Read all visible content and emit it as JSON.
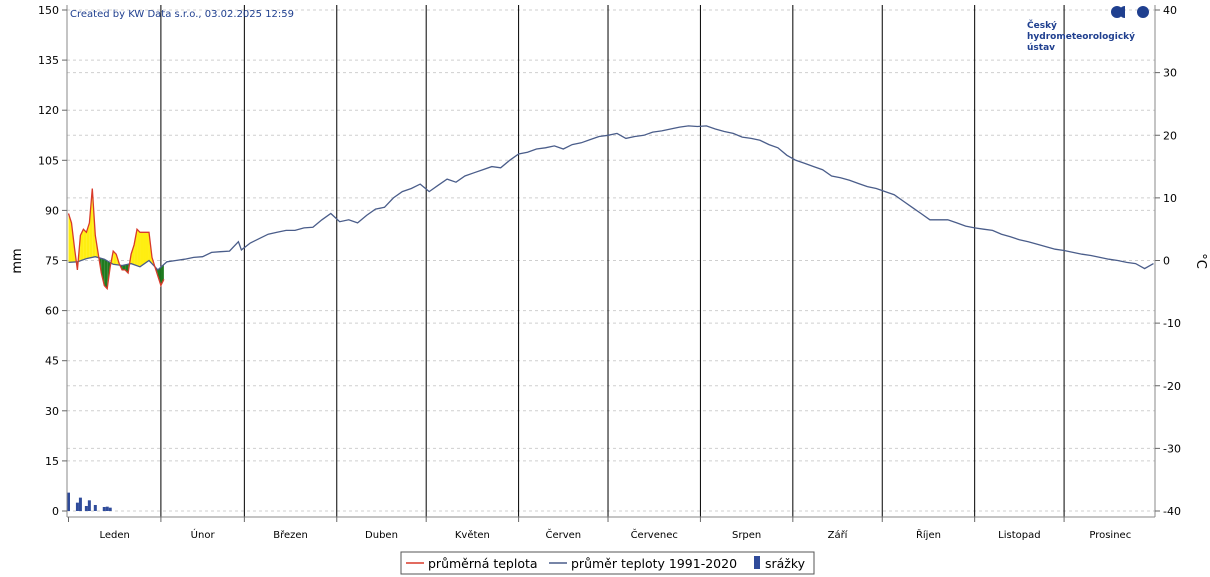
{
  "credit": "Created by KW Data s.r.o., 03.02.2025 12:59",
  "logo": {
    "lines": [
      "Český",
      "hydrometeorologický",
      "ústav"
    ],
    "colors": {
      "brand": "#1f3f8f"
    }
  },
  "chart_data": {
    "type": "line",
    "grid": true,
    "legend_position": "bottom-center",
    "y_left": {
      "label": "mm",
      "range": [
        0,
        150
      ],
      "ticks": [
        0,
        15,
        30,
        45,
        60,
        75,
        90,
        105,
        120,
        135,
        150
      ]
    },
    "y_right": {
      "label": "°C",
      "range": [
        -40,
        40
      ],
      "ticks": [
        -40,
        -30,
        -20,
        -10,
        0,
        10,
        20,
        30,
        40
      ]
    },
    "x": {
      "unit": "day of year",
      "range": [
        1,
        365
      ]
    },
    "months": [
      {
        "name": "Leden",
        "start": 1,
        "end": 31
      },
      {
        "name": "Únor",
        "start": 32,
        "end": 59
      },
      {
        "name": "Březen",
        "start": 60,
        "end": 90
      },
      {
        "name": "Duben",
        "start": 91,
        "end": 120
      },
      {
        "name": "Květen",
        "start": 121,
        "end": 151
      },
      {
        "name": "Červen",
        "start": 152,
        "end": 181
      },
      {
        "name": "Červenec",
        "start": 182,
        "end": 212
      },
      {
        "name": "Srpen",
        "start": 213,
        "end": 243
      },
      {
        "name": "Září",
        "start": 244,
        "end": 273
      },
      {
        "name": "Říjen",
        "start": 274,
        "end": 304
      },
      {
        "name": "Listopad",
        "start": 305,
        "end": 334
      },
      {
        "name": "Prosinec",
        "start": 335,
        "end": 365
      }
    ],
    "series": [
      {
        "name": "průměrná teplota",
        "axis": "right",
        "color": "#d83a2a",
        "x": [
          1,
          2,
          3,
          4,
          5,
          6,
          7,
          8,
          9,
          10,
          11,
          12,
          13,
          14,
          15,
          16,
          17,
          18,
          19,
          20,
          21,
          22,
          23,
          24,
          25,
          26,
          27,
          28,
          29,
          30,
          31,
          32,
          33
        ],
        "values": [
          7.5,
          6.0,
          2.0,
          -1.5,
          4.0,
          5.0,
          4.5,
          6.0,
          11.5,
          4.0,
          1.0,
          -2.0,
          -4.0,
          -4.5,
          -1.0,
          1.5,
          1.0,
          -0.5,
          -1.5,
          -1.5,
          -2.0,
          1.0,
          2.5,
          5.0,
          4.5,
          4.5,
          4.5,
          4.5,
          0.5,
          -1.0,
          -2.5,
          -4.0,
          -3.0
        ]
      },
      {
        "name": "průměr teploty 1991-2020",
        "axis": "right",
        "color": "#4a5d8a",
        "x": [
          1,
          4,
          7,
          10,
          13,
          16,
          19,
          22,
          25,
          28,
          31,
          34,
          37,
          40,
          43,
          46,
          49,
          52,
          55,
          58,
          59,
          62,
          65,
          68,
          71,
          74,
          77,
          80,
          83,
          86,
          89,
          92,
          95,
          98,
          101,
          104,
          107,
          110,
          113,
          116,
          119,
          122,
          125,
          128,
          131,
          134,
          137,
          140,
          143,
          146,
          149,
          152,
          155,
          158,
          161,
          164,
          167,
          170,
          173,
          176,
          179,
          182,
          185,
          188,
          191,
          194,
          197,
          200,
          203,
          206,
          209,
          212,
          215,
          218,
          221,
          224,
          227,
          230,
          233,
          236,
          239,
          242,
          245,
          248,
          251,
          254,
          257,
          260,
          263,
          266,
          269,
          272,
          275,
          278,
          281,
          284,
          287,
          290,
          293,
          296,
          299,
          302,
          305,
          308,
          311,
          314,
          317,
          320,
          323,
          326,
          329,
          332,
          335,
          338,
          341,
          344,
          347,
          350,
          353,
          356,
          359,
          362,
          365
        ],
        "values": [
          -0.3,
          -0.2,
          0.3,
          0.6,
          0.2,
          -0.6,
          -0.8,
          -0.5,
          -1.0,
          0.0,
          -1.5,
          -0.2,
          0.0,
          0.2,
          0.5,
          0.6,
          1.3,
          1.4,
          1.5,
          3.0,
          1.7,
          2.8,
          3.5,
          4.2,
          4.5,
          4.8,
          4.8,
          5.2,
          5.3,
          6.5,
          7.5,
          6.2,
          6.5,
          6.0,
          7.2,
          8.2,
          8.5,
          10.0,
          11.0,
          11.5,
          12.2,
          11.0,
          12.0,
          13.0,
          12.5,
          13.5,
          14.0,
          14.5,
          15.0,
          14.8,
          16.0,
          17.0,
          17.3,
          17.8,
          18.0,
          18.3,
          17.8,
          18.5,
          18.8,
          19.3,
          19.8,
          20.0,
          20.3,
          19.5,
          19.8,
          20.0,
          20.5,
          20.7,
          21.0,
          21.3,
          21.5,
          21.4,
          21.5,
          21.0,
          20.6,
          20.3,
          19.7,
          19.5,
          19.2,
          18.5,
          18.0,
          16.8,
          16.0,
          15.5,
          15.0,
          14.5,
          13.5,
          13.2,
          12.8,
          12.3,
          11.8,
          11.5,
          11.0,
          10.5,
          9.5,
          8.5,
          7.5,
          6.5,
          6.5,
          6.5,
          6.0,
          5.5,
          5.2,
          5.0,
          4.8,
          4.2,
          3.8,
          3.3,
          3.0,
          2.6,
          2.2,
          1.8,
          1.6,
          1.3,
          1.0,
          0.8,
          0.5,
          0.2,
          0.0,
          -0.3,
          -0.5,
          -1.3,
          -0.5
        ]
      },
      {
        "name": "srážky",
        "axis": "left",
        "type": "bar",
        "color": "#2f4b9a",
        "x": [
          1,
          2,
          3,
          4,
          5,
          6,
          7,
          8,
          9,
          10,
          11,
          12,
          13,
          14,
          15
        ],
        "values": [
          5.5,
          0,
          0,
          2.5,
          4,
          0,
          1.5,
          3.2,
          0,
          1.8,
          0,
          0,
          1.2,
          1.3,
          1.0
        ]
      }
    ]
  }
}
